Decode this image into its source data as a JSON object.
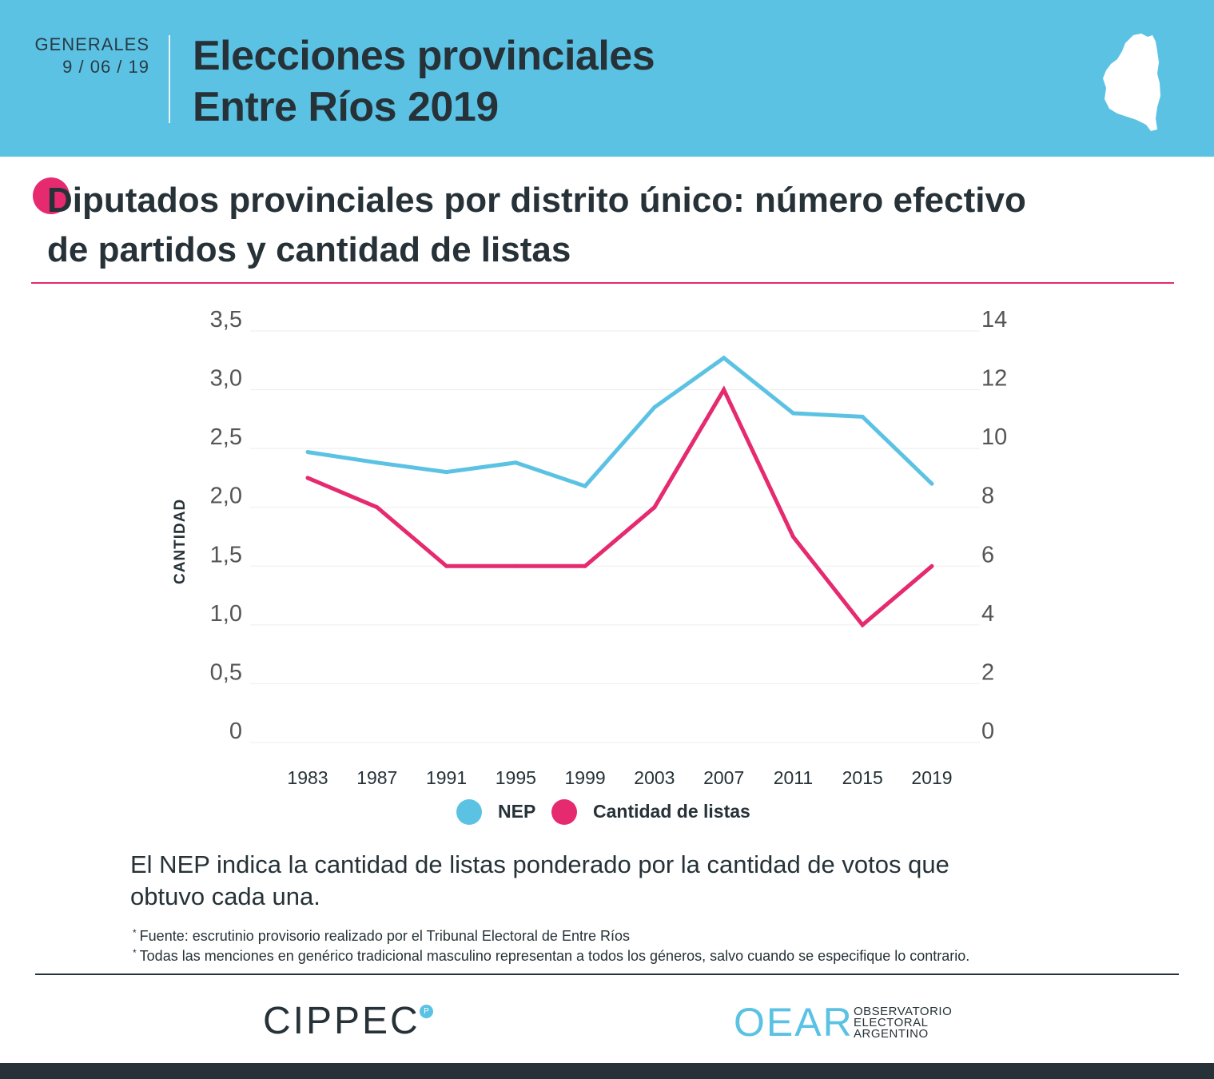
{
  "header": {
    "kicker": "GENERALES",
    "date": "9 / 06 / 19",
    "title_line1": "Elecciones provinciales",
    "title_line2": "Entre Ríos 2019"
  },
  "section": {
    "title_line1": "Diputados provinciales por distrito único: número efectivo",
    "title_line2": "de partidos y cantidad de listas"
  },
  "chart_data": {
    "type": "line",
    "title": "Diputados provinciales por distrito único: número efectivo de partidos y cantidad de listas",
    "ylabel": "CANTIDAD",
    "xlabel": "",
    "categories": [
      "1983",
      "1987",
      "1991",
      "1995",
      "1999",
      "2003",
      "2007",
      "2011",
      "2015",
      "2019"
    ],
    "y_left": {
      "ylim": [
        0,
        3.5
      ],
      "ticks": [
        "0",
        "0,5",
        "1,0",
        "1,5",
        "2,0",
        "2,5",
        "3,0",
        "3,5"
      ]
    },
    "y_right": {
      "ylim": [
        0,
        14
      ],
      "ticks": [
        "0",
        "2",
        "4",
        "6",
        "8",
        "10",
        "12",
        "14"
      ]
    },
    "grid": true,
    "series": [
      {
        "name": "NEP",
        "axis": "left",
        "color": "#5bc2e4",
        "values": [
          2.47,
          2.38,
          2.3,
          2.38,
          2.18,
          2.85,
          3.27,
          2.8,
          2.77,
          2.2
        ]
      },
      {
        "name": "Cantidad de listas",
        "axis": "right",
        "color": "#e62a6f",
        "values": [
          9,
          8,
          6,
          6,
          6,
          8,
          12,
          7,
          4,
          6
        ]
      }
    ],
    "legend_position": "bottom-center"
  },
  "legend": {
    "nep": "NEP",
    "listas": "Cantidad de listas"
  },
  "note": {
    "line1": "El NEP indica la cantidad de listas ponderado por la cantidad de votos que",
    "line2": "obtuvo cada una."
  },
  "footnotes": {
    "star": "*",
    "source": "Fuente: escrutinio provisorio realizado por el Tribunal Electoral de Entre Ríos",
    "gender": "Todas las menciones en genérico tradicional masculino representan a todos los géneros, salvo cuando se especifique lo contrario."
  },
  "logos": {
    "cippec": "CIPPEC",
    "cippec_mark": "P",
    "oear": "OEAR",
    "oear_line1": "OBSERVATORIO",
    "oear_line2": "ELECTORAL",
    "oear_line3": "ARGENTINO"
  },
  "colors": {
    "accent_blue": "#5bc2e4",
    "accent_pink": "#e62a6f",
    "dark": "#263238"
  }
}
